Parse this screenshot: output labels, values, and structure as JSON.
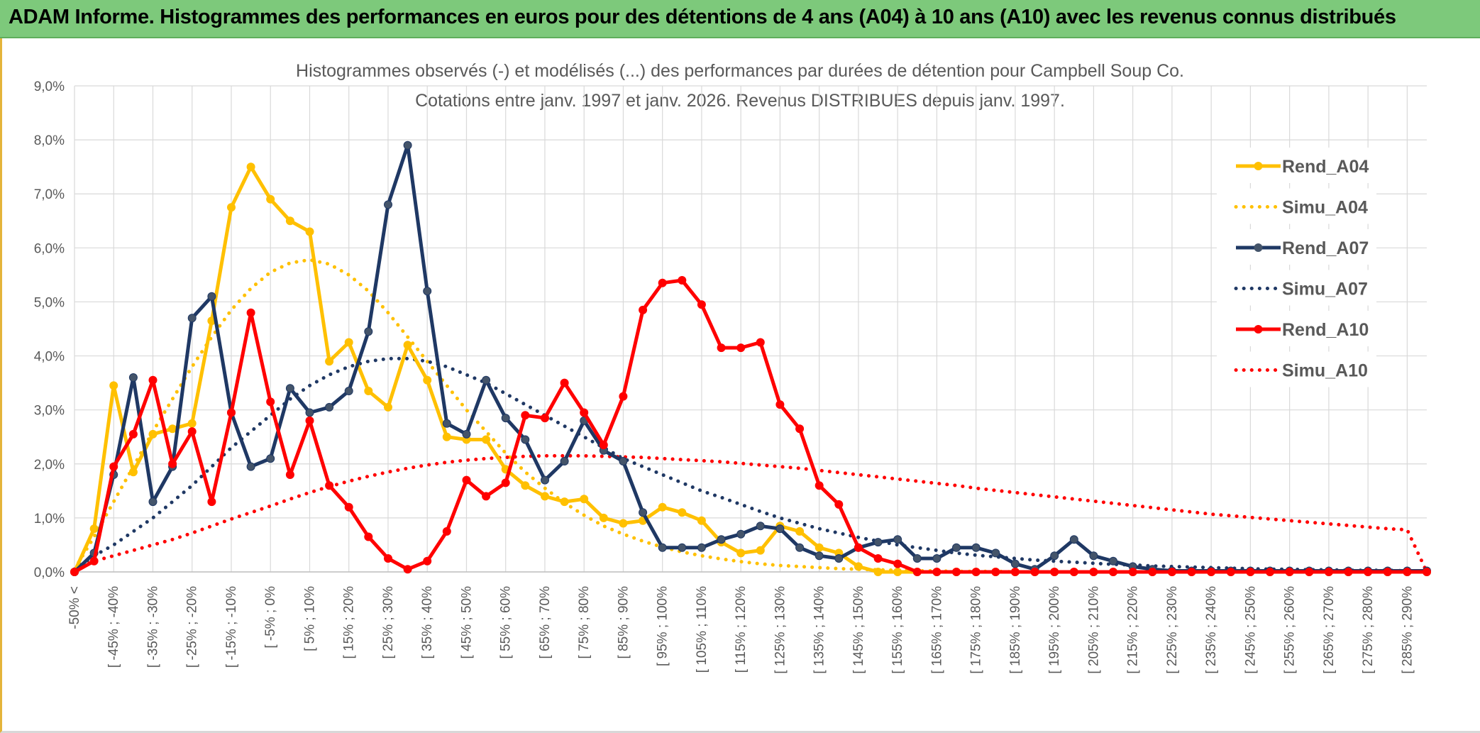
{
  "header": {
    "title": "ADAM Informe. Histogrammes des performances en euros pour des détentions de 4 ans (A04) à 10 ans (A10) avec les revenus connus distribués"
  },
  "colors": {
    "A04": "#ffc000",
    "A07": "#1f3864",
    "A10": "#ff0000",
    "banner": "#7dc97b",
    "grid": "#d9d9d9",
    "text": "#595959"
  },
  "chart_data": {
    "type": "line",
    "title": "Histogrammes observés (-) et modélisés (...) des performances par durées de détention pour Campbell Soup Co.",
    "subtitle": "Cotations entre janv. 1997 et janv. 2026. Revenus DISTRIBUES depuis janv. 1997.",
    "xlabel": "",
    "ylabel": "",
    "ylim": [
      0,
      9
    ],
    "y_unit": "%",
    "y_ticks": [
      "0,0%",
      "1,0%",
      "2,0%",
      "3,0%",
      "4,0%",
      "5,0%",
      "6,0%",
      "7,0%",
      "8,0%",
      "9,0%"
    ],
    "x_tick_labels": [
      "-50% <",
      "[ -45% ; -40%",
      "[ -35% ; -30%",
      "[ -25% ; -20%",
      "[ -15% ; -10%",
      "[ -5% ; 0%",
      "[ 5% ; 10%",
      "[ 15% ; 20%",
      "[ 25% ; 30%",
      "[ 35% ; 40%",
      "[ 45% ; 50%",
      "[ 55% ; 60%",
      "[ 65% ; 70%",
      "[ 75% ; 80%",
      "[ 85% ; 90%",
      "[ 95% ; 100%",
      "[ 105% ; 110%",
      "[ 115% ; 120%",
      "[ 125% ; 130%",
      "[ 135% ; 140%",
      "[ 145% ; 150%",
      "[ 155% ; 160%",
      "[ 165% ; 170%",
      "[ 175% ; 180%",
      "[ 185% ; 190%",
      "[ 195% ; 200%",
      "[ 205% ; 210%",
      "[ 215% ; 220%",
      "[ 225% ; 230%",
      "[ 235% ; 240%",
      "[ 245% ; 250%",
      "[ 255% ; 260%",
      "[ 265% ; 270%",
      "[ 275% ; 280%",
      "[ 285% ; 290%"
    ],
    "n_points": 70,
    "grid": true,
    "legend_position": "right",
    "series": [
      {
        "name": "Rend_A04",
        "style": "solid",
        "color": "#ffc000",
        "values": [
          0.0,
          0.8,
          3.45,
          1.85,
          2.55,
          2.65,
          2.75,
          4.65,
          6.75,
          7.5,
          6.9,
          6.5,
          6.3,
          3.9,
          4.25,
          3.35,
          3.05,
          4.2,
          3.55,
          2.5,
          2.45,
          2.45,
          1.9,
          1.6,
          1.4,
          1.3,
          1.35,
          1.0,
          0.9,
          0.95,
          1.2,
          1.1,
          0.95,
          0.55,
          0.35,
          0.4,
          0.85,
          0.75,
          0.45,
          0.35,
          0.1,
          0.0,
          0.0,
          0.0,
          0.0,
          0.0,
          0.0,
          0.0,
          0.0,
          0.0,
          0.0,
          0.0,
          0.0,
          0.0,
          0.0,
          0.0,
          0.0,
          0.0,
          0.0,
          0.0,
          0.0,
          0.0,
          0.0,
          0.0,
          0.0,
          0.0,
          0.0,
          0.0,
          0.0,
          0.0
        ]
      },
      {
        "name": "Simu_A04",
        "style": "dotted",
        "color": "#ffc000",
        "values": [
          0.05,
          0.65,
          1.3,
          1.95,
          2.6,
          3.2,
          3.8,
          4.35,
          4.85,
          5.25,
          5.55,
          5.72,
          5.78,
          5.7,
          5.5,
          5.2,
          4.8,
          4.35,
          3.9,
          3.45,
          3.0,
          2.6,
          2.2,
          1.85,
          1.55,
          1.28,
          1.05,
          0.85,
          0.7,
          0.57,
          0.46,
          0.37,
          0.3,
          0.24,
          0.19,
          0.15,
          0.12,
          0.1,
          0.08,
          0.06,
          0.05,
          0.04,
          0.03,
          0.02,
          0.02,
          0.01,
          0.01,
          0.01,
          0.0,
          0.0,
          0.0,
          0.0,
          0.0,
          0.0,
          0.0,
          0.0,
          0.0,
          0.0,
          0.0,
          0.0,
          0.0,
          0.0,
          0.0,
          0.0,
          0.0,
          0.0,
          0.0,
          0.0,
          0.0,
          0.0
        ]
      },
      {
        "name": "Rend_A07",
        "style": "solid",
        "color": "#1f3864",
        "values": [
          0.0,
          0.35,
          1.8,
          3.6,
          1.3,
          1.95,
          4.7,
          5.1,
          2.95,
          1.95,
          2.1,
          3.4,
          2.95,
          3.05,
          3.35,
          4.45,
          6.8,
          7.9,
          5.2,
          2.75,
          2.55,
          3.55,
          2.85,
          2.45,
          1.7,
          2.05,
          2.8,
          2.25,
          2.05,
          1.1,
          0.45,
          0.45,
          0.45,
          0.6,
          0.7,
          0.85,
          0.8,
          0.45,
          0.3,
          0.25,
          0.45,
          0.55,
          0.6,
          0.25,
          0.25,
          0.45,
          0.45,
          0.35,
          0.15,
          0.05,
          0.3,
          0.6,
          0.3,
          0.2,
          0.1,
          0.05,
          0.02,
          0.02,
          0.02,
          0.02,
          0.02,
          0.02,
          0.02,
          0.02,
          0.02,
          0.02,
          0.02,
          0.02,
          0.02,
          0.02
        ]
      },
      {
        "name": "Simu_A07",
        "style": "dotted",
        "color": "#1f3864",
        "values": [
          0.05,
          0.3,
          0.5,
          0.75,
          1.0,
          1.3,
          1.6,
          1.95,
          2.3,
          2.6,
          2.9,
          3.2,
          3.45,
          3.65,
          3.8,
          3.9,
          3.95,
          3.95,
          3.9,
          3.8,
          3.65,
          3.5,
          3.3,
          3.1,
          2.9,
          2.7,
          2.5,
          2.3,
          2.1,
          1.95,
          1.8,
          1.65,
          1.5,
          1.38,
          1.25,
          1.12,
          1.0,
          0.9,
          0.8,
          0.72,
          0.64,
          0.57,
          0.5,
          0.45,
          0.4,
          0.35,
          0.31,
          0.28,
          0.25,
          0.22,
          0.2,
          0.18,
          0.16,
          0.14,
          0.13,
          0.11,
          0.1,
          0.09,
          0.08,
          0.07,
          0.06,
          0.05,
          0.05,
          0.04,
          0.04,
          0.03,
          0.03,
          0.03,
          0.02,
          0.02
        ]
      },
      {
        "name": "Rend_A10",
        "style": "solid",
        "color": "#ff0000",
        "values": [
          0.0,
          0.2,
          1.95,
          2.55,
          3.55,
          2.0,
          2.6,
          1.3,
          2.95,
          4.8,
          3.15,
          1.8,
          2.8,
          1.6,
          1.2,
          0.65,
          0.25,
          0.05,
          0.2,
          0.75,
          1.7,
          1.4,
          1.65,
          2.9,
          2.85,
          3.5,
          2.95,
          2.35,
          3.25,
          4.85,
          5.35,
          5.4,
          4.95,
          4.15,
          4.15,
          4.25,
          3.1,
          2.65,
          1.6,
          1.25,
          0.45,
          0.25,
          0.15,
          0.0,
          0.0,
          0.0,
          0.0,
          0.0,
          0.0,
          0.0,
          0.0,
          0.0,
          0.0,
          0.0,
          0.0,
          0.0,
          0.0,
          0.0,
          0.0,
          0.0,
          0.0,
          0.0,
          0.0,
          0.0,
          0.0,
          0.0,
          0.0,
          0.0,
          0.0,
          0.0
        ]
      },
      {
        "name": "Simu_A10",
        "style": "dotted",
        "color": "#ff0000",
        "values": [
          0.05,
          0.2,
          0.3,
          0.4,
          0.5,
          0.6,
          0.72,
          0.85,
          0.98,
          1.1,
          1.22,
          1.35,
          1.47,
          1.58,
          1.68,
          1.77,
          1.85,
          1.92,
          1.98,
          2.03,
          2.07,
          2.1,
          2.12,
          2.14,
          2.15,
          2.15,
          2.15,
          2.14,
          2.13,
          2.12,
          2.1,
          2.08,
          2.06,
          2.04,
          2.01,
          1.98,
          1.95,
          1.92,
          1.88,
          1.84,
          1.8,
          1.76,
          1.72,
          1.68,
          1.64,
          1.6,
          1.55,
          1.51,
          1.47,
          1.43,
          1.39,
          1.35,
          1.31,
          1.27,
          1.23,
          1.19,
          1.15,
          1.11,
          1.07,
          1.04,
          1.01,
          0.98,
          0.95,
          0.92,
          0.89,
          0.86,
          0.83,
          0.8,
          0.78,
          0.0
        ]
      }
    ]
  }
}
